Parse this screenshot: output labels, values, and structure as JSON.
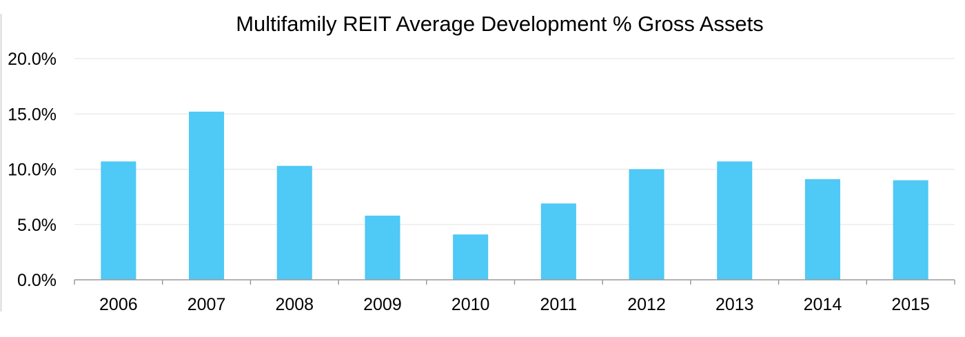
{
  "chart_data": {
    "type": "bar",
    "title": "Multifamily REIT Average Development % Gross Assets",
    "xlabel": "",
    "ylabel": "",
    "categories": [
      "2006",
      "2007",
      "2008",
      "2009",
      "2010",
      "2011",
      "2012",
      "2013",
      "2014",
      "2015"
    ],
    "values": [
      10.7,
      15.2,
      10.3,
      5.8,
      4.1,
      6.9,
      10.0,
      10.7,
      9.1,
      9.0
    ],
    "ylim": [
      0,
      20
    ],
    "yticks": [
      0,
      5,
      10,
      15,
      20
    ],
    "ytick_labels": [
      "0.0%",
      "5.0%",
      "10.0%",
      "15.0%",
      "20.0%"
    ],
    "grid": true,
    "legend": "none",
    "bar_color": "#4fc9f5"
  }
}
